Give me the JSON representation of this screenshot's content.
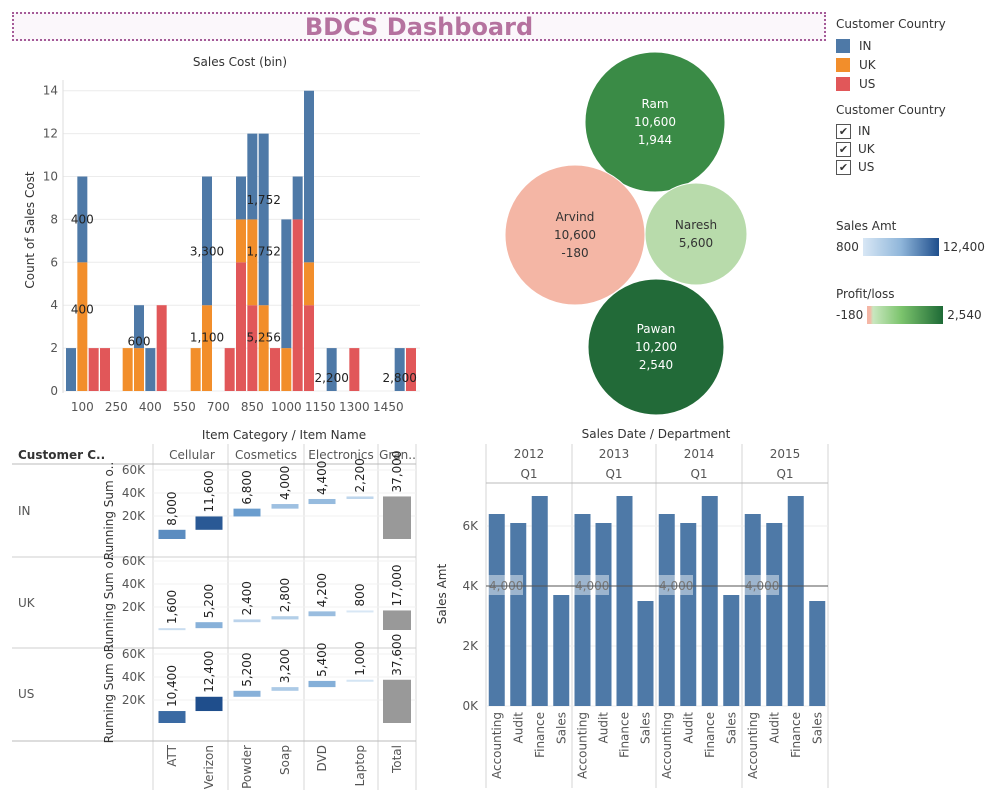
{
  "header": {
    "title": "BDCS Dashboard"
  },
  "legend_country": {
    "title": "Customer Country",
    "items": [
      {
        "label": "IN",
        "color": "#4e79a7"
      },
      {
        "label": "UK",
        "color": "#f28e2b"
      },
      {
        "label": "US",
        "color": "#e15759"
      }
    ]
  },
  "filter_country": {
    "title": "Customer Country",
    "items": [
      {
        "label": "IN",
        "checked": true
      },
      {
        "label": "UK",
        "checked": true
      },
      {
        "label": "US",
        "checked": true
      }
    ],
    "check_glyph": "✔"
  },
  "legend_sales": {
    "title": "Sales Amt",
    "min": "800",
    "max": "12,400"
  },
  "legend_profit": {
    "title": "Profit/loss",
    "min": "-180",
    "max": "2,540"
  },
  "chart_data": [
    {
      "type": "bar",
      "title": "Sales Cost (bin)",
      "ylabel": "Count of Sales Cost",
      "ylim": [
        0,
        14.5
      ],
      "yticks": [
        0,
        2,
        4,
        6,
        8,
        10,
        12,
        14
      ],
      "xticks": [
        "100",
        "250",
        "400",
        "550",
        "700",
        "850",
        "1000",
        "1150",
        "1300",
        "1450"
      ],
      "bars": [
        {
          "x": 50,
          "IN": 2,
          "UK": 0,
          "US": 0
        },
        {
          "x": 100,
          "IN": 4,
          "UK": 6,
          "US": 0
        },
        {
          "x": 150,
          "IN": 0,
          "UK": 0,
          "US": 2
        },
        {
          "x": 200,
          "IN": 0,
          "UK": 0,
          "US": 2
        },
        {
          "x": 300,
          "IN": 0,
          "UK": 2,
          "US": 0
        },
        {
          "x": 350,
          "IN": 2,
          "UK": 2,
          "US": 0
        },
        {
          "x": 400,
          "IN": 2,
          "UK": 0,
          "US": 0
        },
        {
          "x": 450,
          "IN": 0,
          "UK": 0,
          "US": 4
        },
        {
          "x": 600,
          "IN": 0,
          "UK": 2,
          "US": 0
        },
        {
          "x": 650,
          "IN": 6,
          "UK": 4,
          "US": 0
        },
        {
          "x": 750,
          "IN": 0,
          "UK": 0,
          "US": 2
        },
        {
          "x": 800,
          "IN": 2,
          "UK": 2,
          "US": 6
        },
        {
          "x": 850,
          "IN": 4,
          "UK": 4,
          "US": 4
        },
        {
          "x": 900,
          "IN": 8,
          "UK": 4,
          "US": 0
        },
        {
          "x": 950,
          "IN": 0,
          "UK": 0,
          "US": 2
        },
        {
          "x": 1000,
          "IN": 6,
          "UK": 2,
          "US": 0
        },
        {
          "x": 1050,
          "IN": 2,
          "UK": 0,
          "US": 8
        },
        {
          "x": 1100,
          "IN": 8,
          "UK": 2,
          "US": 4
        },
        {
          "x": 1200,
          "IN": 2,
          "UK": 0,
          "US": 0
        },
        {
          "x": 1300,
          "IN": 0,
          "UK": 0,
          "US": 2
        },
        {
          "x": 1500,
          "IN": 2,
          "UK": 0,
          "US": 0
        },
        {
          "x": 1550,
          "IN": 0,
          "UK": 0,
          "US": 2
        }
      ],
      "labels": [
        {
          "text": "400",
          "x": 100,
          "y": 8
        },
        {
          "text": "400",
          "x": 100,
          "y": 3.8
        },
        {
          "text": "600",
          "x": 350,
          "y": 2.3
        },
        {
          "text": "3,300",
          "x": 650,
          "y": 6.5
        },
        {
          "text": "1,100",
          "x": 650,
          "y": 2.5
        },
        {
          "text": "1,752",
          "x": 900,
          "y": 8.9
        },
        {
          "text": "1,752",
          "x": 900,
          "y": 6.5
        },
        {
          "text": "5,256",
          "x": 900,
          "y": 2.5
        },
        {
          "text": "2,200",
          "x": 1200,
          "y": 0.6
        },
        {
          "text": "2,800",
          "x": 1500,
          "y": 0.6
        }
      ]
    },
    {
      "type": "bubble",
      "bubbles": [
        {
          "name": "Ram",
          "sales": "10,600",
          "profit": "1,944",
          "color": "#3a8b46"
        },
        {
          "name": "Arvind",
          "sales": "10,600",
          "profit": "-180",
          "color": "#f4b6a5"
        },
        {
          "name": "Naresh",
          "sales": "5,600",
          "profit": "",
          "color": "#b8dbab"
        },
        {
          "name": "Pawan",
          "sales": "10,200",
          "profit": "2,540",
          "color": "#226a38"
        }
      ]
    },
    {
      "type": "bar",
      "title": "Item Category / Item Name",
      "row_header": "Customer C..",
      "ylabel": "Running Sum o..",
      "yticks": [
        "20K",
        "40K",
        "60K"
      ],
      "categories": [
        "Cellular",
        "Cosmetics",
        "Electronics",
        "Gran.."
      ],
      "items": [
        "ATT",
        "Verizon",
        "Powder",
        "Soap",
        "DVD",
        "Laptop",
        "Total"
      ],
      "rows": [
        {
          "country": "IN",
          "values": [
            8000,
            19600,
            26400,
            30400,
            34800,
            37000,
            37000
          ],
          "labels": [
            "8,000",
            "11,600",
            "6,800",
            "4,000",
            "4,400",
            "2,200",
            "37,000"
          ]
        },
        {
          "country": "UK",
          "values": [
            1600,
            6800,
            9200,
            12000,
            16200,
            17000,
            17000
          ],
          "labels": [
            "1,600",
            "5,200",
            "2,400",
            "2,800",
            "4,200",
            "800",
            "17,000"
          ]
        },
        {
          "country": "US",
          "values": [
            10400,
            22800,
            28000,
            31200,
            36600,
            37600,
            37600
          ],
          "labels": [
            "10,400",
            "12,400",
            "5,200",
            "3,200",
            "5,400",
            "1,000",
            "37,600"
          ]
        }
      ]
    },
    {
      "type": "bar",
      "title": "Sales Date / Department",
      "ylabel": "Sales Amt",
      "yticks": [
        "0K",
        "2K",
        "4K",
        "6K"
      ],
      "reference_line": {
        "value": 4000,
        "label": "4,000"
      },
      "groups": [
        {
          "year": "2012",
          "quarter": "Q1",
          "values": [
            6400,
            6100,
            7000,
            3700
          ]
        },
        {
          "year": "2013",
          "quarter": "Q1",
          "values": [
            6400,
            6100,
            7000,
            3500
          ]
        },
        {
          "year": "2014",
          "quarter": "Q1",
          "values": [
            6400,
            6100,
            7000,
            3700
          ]
        },
        {
          "year": "2015",
          "quarter": "Q1",
          "values": [
            6400,
            6100,
            7000,
            3500
          ]
        }
      ],
      "departments": [
        "Accounting",
        "Audit",
        "Finance",
        "Sales"
      ]
    }
  ]
}
